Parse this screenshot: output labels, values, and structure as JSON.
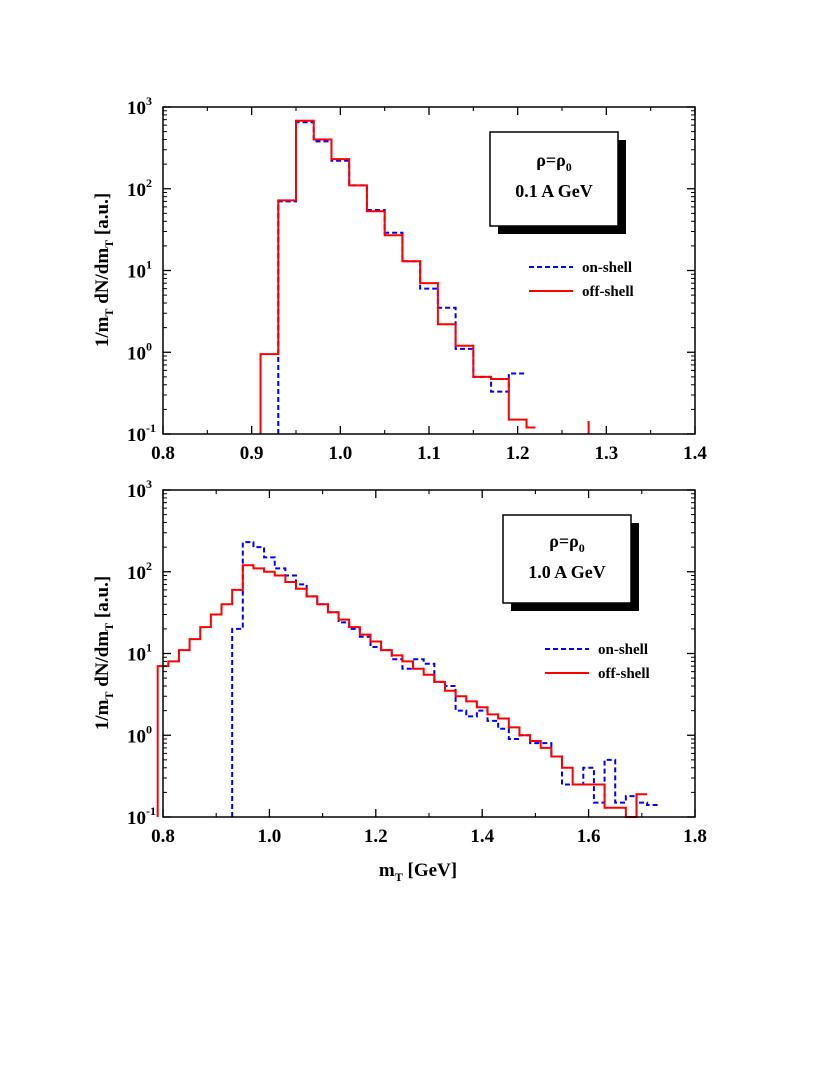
{
  "chart_data": [
    {
      "type": "line",
      "step": true,
      "xlim": [
        0.8,
        1.4
      ],
      "xticks": [
        "0.8",
        "0.9",
        "1.0",
        "1.1",
        "1.2",
        "1.3",
        "1.4"
      ],
      "yscale": "log",
      "ylim": [
        0.1,
        1000
      ],
      "yticks": [
        {
          "base": "10",
          "exp": "-1"
        },
        {
          "base": "10",
          "exp": "0"
        },
        {
          "base": "10",
          "exp": "1"
        },
        {
          "base": "10",
          "exp": "2"
        },
        {
          "base": "10",
          "exp": "3"
        }
      ],
      "ylabel": {
        "a": "1/m",
        "a_sub": "T",
        "b": " dN/dm",
        "b_sub": "T",
        "c": " [a.u.]"
      },
      "xlabel": null,
      "annotation": {
        "line1_main": "ρ=ρ",
        "line1_sub": "0",
        "line2": "0.1 A GeV"
      },
      "legend_position": "right",
      "series": [
        {
          "name": "on-shell",
          "color": "#0000ff",
          "style": "dashed",
          "edges": [
            0.93,
            0.94,
            0.95,
            0.96,
            0.97,
            0.98,
            0.99,
            1.0,
            1.01,
            1.02,
            1.03,
            1.04,
            1.05,
            1.06,
            1.07,
            1.08,
            1.09,
            1.1,
            1.11,
            1.12,
            1.13,
            1.14,
            1.15,
            1.16,
            1.17,
            1.18,
            1.19,
            1.2,
            1.21
          ],
          "values": [
            70,
            70,
            650,
            650,
            380,
            380,
            220,
            220,
            110,
            110,
            55,
            55,
            29,
            29,
            13,
            13,
            6.0,
            6.0,
            3.5,
            3.5,
            1.1,
            1.1,
            0.5,
            0.5,
            0.33,
            0.33,
            0.55,
            0.55
          ]
        },
        {
          "name": "off-shell",
          "color": "#ff0000",
          "style": "solid",
          "edges": [
            0.91,
            0.92,
            0.93,
            0.94,
            0.95,
            0.96,
            0.97,
            0.98,
            0.99,
            1.0,
            1.01,
            1.02,
            1.03,
            1.04,
            1.05,
            1.06,
            1.07,
            1.08,
            1.09,
            1.1,
            1.11,
            1.12,
            1.13,
            1.14,
            1.15,
            1.16,
            1.17,
            1.18,
            1.19,
            1.2,
            1.21,
            1.22
          ],
          "values": [
            0.95,
            0.95,
            72,
            72,
            680,
            680,
            400,
            400,
            230,
            230,
            110,
            110,
            53,
            53,
            27,
            27,
            13,
            13,
            7,
            7,
            2.2,
            2.2,
            1.2,
            1.2,
            0.5,
            0.5,
            0.47,
            0.47,
            0.15,
            0.15,
            0.12
          ],
          "extra_spike_x": 1.28
        }
      ]
    },
    {
      "type": "line",
      "step": true,
      "xlim": [
        0.8,
        1.8
      ],
      "xticks": [
        "0.8",
        "1.0",
        "1.2",
        "1.4",
        "1.6",
        "1.8"
      ],
      "yscale": "log",
      "ylim": [
        0.1,
        1000
      ],
      "yticks": [
        {
          "base": "10",
          "exp": "-1"
        },
        {
          "base": "10",
          "exp": "0"
        },
        {
          "base": "10",
          "exp": "1"
        },
        {
          "base": "10",
          "exp": "2"
        },
        {
          "base": "10",
          "exp": "3"
        }
      ],
      "ylabel": {
        "a": "1/m",
        "a_sub": "T",
        "b": " dN/dm",
        "b_sub": "T",
        "c": " [a.u.]"
      },
      "xlabel": {
        "main": "m",
        "sub": "T",
        "unit": " [GeV]"
      },
      "annotation": {
        "line1_main": "ρ=ρ",
        "line1_sub": "0",
        "line2": "1.0 A GeV"
      },
      "legend_position": "right",
      "series": [
        {
          "name": "on-shell",
          "color": "#0000ff",
          "style": "dashed",
          "edges": [
            0.93,
            0.95,
            0.97,
            0.99,
            1.01,
            1.03,
            1.05,
            1.07,
            1.09,
            1.11,
            1.13,
            1.15,
            1.17,
            1.19,
            1.21,
            1.23,
            1.25,
            1.27,
            1.29,
            1.31,
            1.33,
            1.35,
            1.37,
            1.39,
            1.41,
            1.43,
            1.45,
            1.47,
            1.49,
            1.51,
            1.53,
            1.55,
            1.57,
            1.59,
            1.61,
            1.63,
            1.65,
            1.67,
            1.69,
            1.71,
            1.73
          ],
          "values": [
            20,
            230,
            200,
            150,
            110,
            90,
            70,
            50,
            40,
            32,
            24,
            20,
            16,
            12,
            11,
            8.5,
            6.5,
            8.5,
            7.5,
            4.5,
            4.0,
            2.0,
            1.7,
            2.0,
            1.5,
            1.2,
            0.9,
            1.0,
            0.8,
            0.8,
            0.55,
            0.25,
            0.25,
            0.4,
            0.15,
            0.5,
            0.15,
            0.18,
            0.15,
            0.14
          ],
          "left_drop_to": 0.1
        },
        {
          "name": "off-shell",
          "color": "#ff0000",
          "style": "solid",
          "edges": [
            0.79,
            0.81,
            0.83,
            0.85,
            0.87,
            0.89,
            0.91,
            0.93,
            0.95,
            0.97,
            0.99,
            1.01,
            1.03,
            1.05,
            1.07,
            1.09,
            1.11,
            1.13,
            1.15,
            1.17,
            1.19,
            1.21,
            1.23,
            1.25,
            1.27,
            1.29,
            1.31,
            1.33,
            1.35,
            1.37,
            1.39,
            1.41,
            1.43,
            1.45,
            1.47,
            1.49,
            1.51,
            1.53,
            1.55,
            1.57,
            1.59,
            1.61,
            1.63,
            1.65,
            1.67,
            1.69,
            1.71
          ],
          "values": [
            7,
            8,
            11,
            15,
            21,
            30,
            40,
            60,
            120,
            110,
            100,
            90,
            75,
            62,
            50,
            40,
            32,
            26,
            21,
            17,
            14,
            11,
            9.5,
            8,
            6.5,
            5.5,
            4.5,
            3.5,
            3.0,
            2.6,
            2.2,
            1.8,
            1.6,
            1.25,
            1.0,
            0.85,
            0.7,
            0.55,
            0.4,
            0.25,
            0.25,
            0.25,
            0.13,
            0.13,
            0.1,
            0.19,
            0.42
          ]
        }
      ]
    }
  ]
}
